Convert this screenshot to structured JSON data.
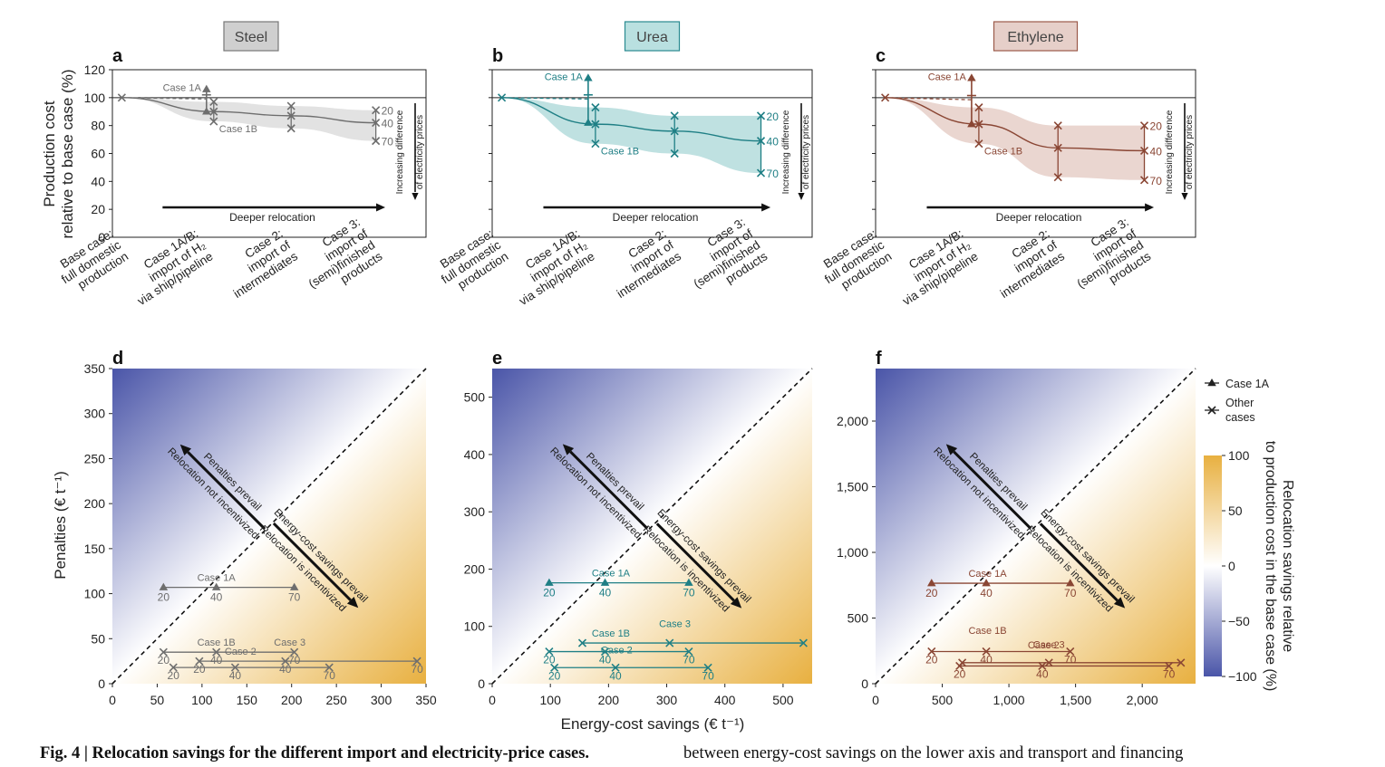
{
  "figure_label": "Fig. 4 | Relocation savings for the different import and electricity-price cases.",
  "caption_continuation": "between energy-cost savings on the lower axis and transport and financing",
  "top_ylabel": [
    "Production cost",
    "relative to base case (%)"
  ],
  "top_xcats": [
    [
      "Base case:",
      "full domestic",
      "production"
    ],
    [
      "Case 1A/B:",
      "import of H₂",
      "via ship/pipeline"
    ],
    [
      "Case 2:",
      "import of",
      "intermediates"
    ],
    [
      "Case 3:",
      "import of",
      "(semi)finished",
      "products"
    ]
  ],
  "deeper_relocation": "Deeper relocation",
  "increasing_diff": [
    "Increasing difference",
    "of electricity prices"
  ],
  "bottom_ylabel": "Penalties (€ t⁻¹)",
  "bottom_xlabel": "Energy-cost savings (€ t⁻¹)",
  "arrow_labels": {
    "penalties_prevail": "Penalties prevail",
    "not_incentivized": "Relocation not incentivized",
    "savings_prevail": "Energy-cost savings prevail",
    "incentivized": "Relocation is incentivized"
  },
  "legend": {
    "case1a": "Case 1A",
    "other": [
      "Other",
      "cases"
    ]
  },
  "colorbar": {
    "ticks": [
      "100",
      "50",
      "0",
      "−50",
      "−100"
    ],
    "label": [
      "Relocation savings relative",
      "to production cost in the base case (%)"
    ],
    "low_color": "#4a55a8",
    "mid_color": "#ffffff",
    "high_color": "#e8b040"
  },
  "chart_data": [
    {
      "panel": "a",
      "product": "Steel",
      "type": "line",
      "color": "#6e6e6e",
      "band": "#e2e2e2",
      "box_fill": "#cfcfcf",
      "box_edge": "#777777",
      "ylim": [
        0,
        120
      ],
      "yticks": [
        0,
        20,
        40,
        60,
        80,
        100,
        120
      ],
      "base": 100,
      "case1a": {
        "top": 106,
        "bottom": 90,
        "label": "Case 1A"
      },
      "case1b": {
        "mid": 90,
        "upper": 97,
        "lower": 83,
        "label": "Case 1B"
      },
      "case2": {
        "mid": 87,
        "upper": 94,
        "lower": 78
      },
      "case3": {
        "mid": 82,
        "upper": 91,
        "lower": 69,
        "labels": [
          "20",
          "40",
          "70"
        ]
      },
      "scatter_ylim": [
        0,
        350
      ],
      "scatter_xlim": [
        0,
        350
      ],
      "scatter_yticks": [
        0,
        50,
        100,
        150,
        200,
        250,
        300,
        350
      ],
      "scatter_xticks": [
        0,
        50,
        100,
        150,
        200,
        250,
        300,
        350
      ],
      "scatter_tick_labels_x": [
        "0",
        "50",
        "100",
        "150",
        "200",
        "250",
        "300",
        "350"
      ],
      "scatter_tick_labels_y": [
        "0",
        "50",
        "100",
        "150",
        "200",
        "250",
        "300",
        "350"
      ],
      "scatter_series": [
        {
          "name": "Case 1A",
          "marker": "tri",
          "y": 107,
          "points": [
            57,
            116,
            203
          ],
          "labels": [
            "20",
            "40",
            "70"
          ],
          "label_offset": 9
        },
        {
          "name": "Case 1B",
          "marker": "x",
          "y": 35,
          "points": [
            57,
            116,
            203
          ],
          "labels": [
            "20",
            "40",
            "70"
          ],
          "label_offset": 0
        },
        {
          "name": "Case 2",
          "marker": "x",
          "y": 25,
          "points": [
            97,
            193,
            340
          ],
          "labels": [
            "20",
            "40",
            "70"
          ],
          "label_offset": 0
        },
        {
          "name": "Case 3",
          "marker": "x",
          "y": 18,
          "points": [
            68,
            137,
            242
          ],
          "labels": [
            "20",
            "40",
            "70"
          ],
          "label_offset": 0
        }
      ],
      "scatter_names": [
        {
          "text": "Case 1A",
          "x": 116,
          "y": 107
        },
        {
          "text": "Case 1B",
          "x": 116,
          "y": 35
        },
        {
          "text": "Case 2",
          "x": 143,
          "y": 25
        },
        {
          "text": "Case 3",
          "x": 198,
          "y": 35
        }
      ]
    },
    {
      "panel": "b",
      "product": "Urea",
      "type": "line",
      "color": "#1f7f85",
      "band": "#bfe1e1",
      "box_fill": "#b9e0e0",
      "box_edge": "#2a8a90",
      "ylim": [
        0,
        120
      ],
      "yticks": [
        0,
        20,
        40,
        60,
        80,
        100,
        120
      ],
      "base": 100,
      "case1a": {
        "top": 114,
        "bottom": 82,
        "label": "Case 1A"
      },
      "case1b": {
        "mid": 81,
        "upper": 93,
        "lower": 67,
        "label": "Case 1B"
      },
      "case2": {
        "mid": 76,
        "upper": 87,
        "lower": 60
      },
      "case3": {
        "mid": 69,
        "upper": 87,
        "lower": 46,
        "labels": [
          "20",
          "40",
          "70"
        ]
      },
      "scatter_ylim": [
        0,
        550
      ],
      "scatter_xlim": [
        0,
        550
      ],
      "scatter_yticks": [
        0,
        100,
        200,
        300,
        400,
        500
      ],
      "scatter_xticks": [
        0,
        100,
        200,
        300,
        400,
        500
      ],
      "scatter_tick_labels_x": [
        "0",
        "100",
        "200",
        "300",
        "400",
        "500"
      ],
      "scatter_tick_labels_y": [
        "0",
        "100",
        "200",
        "300",
        "400",
        "500"
      ],
      "scatter_series": [
        {
          "name": "Case 1A",
          "marker": "tri",
          "y": 176,
          "points": [
            98,
            194,
            338
          ],
          "labels": [
            "20",
            "40",
            "70"
          ],
          "label_offset": 9
        },
        {
          "name": "Case 1B",
          "marker": "x",
          "y": 56,
          "points": [
            98,
            194,
            338
          ],
          "labels": [
            "20",
            "40",
            "70"
          ],
          "label_offset": 0
        },
        {
          "name": "Case 3",
          "marker": "x",
          "y": 71,
          "points": [
            155,
            305,
            535
          ],
          "labels": [],
          "label_offset": 0
        },
        {
          "name": "Case 2",
          "marker": "x",
          "y": 28,
          "points": [
            107,
            212,
            371
          ],
          "labels": [
            "20",
            "40",
            "70"
          ],
          "label_offset": 0
        }
      ],
      "scatter_names": [
        {
          "text": "Case 1A",
          "x": 204,
          "y": 176
        },
        {
          "text": "Case 1B",
          "x": 204,
          "y": 71
        },
        {
          "text": "Case 2",
          "x": 214,
          "y": 42
        },
        {
          "text": "Case 3",
          "x": 314,
          "y": 88
        }
      ]
    },
    {
      "panel": "c",
      "product": "Ethylene",
      "type": "line",
      "color": "#8a4634",
      "band": "#ead6d0",
      "box_fill": "#e6cfc9",
      "box_edge": "#9b5a4a",
      "ylim": [
        0,
        120
      ],
      "yticks": [
        0,
        20,
        40,
        60,
        80,
        100,
        120
      ],
      "base": 100,
      "case1a": {
        "top": 114,
        "bottom": 81,
        "label": "Case 1A"
      },
      "case1b": {
        "mid": 81,
        "upper": 93,
        "lower": 67,
        "label": "Case 1B"
      },
      "case2": {
        "mid": 64,
        "upper": 80,
        "lower": 43
      },
      "case3": {
        "mid": 62,
        "upper": 80,
        "lower": 41,
        "labels": [
          "20",
          "40",
          "70"
        ]
      },
      "scatter_ylim": [
        0,
        2400
      ],
      "scatter_xlim": [
        0,
        2400
      ],
      "scatter_yticks": [
        0,
        500,
        1000,
        1500,
        2000
      ],
      "scatter_xticks": [
        0,
        500,
        1000,
        1500,
        2000
      ],
      "scatter_tick_labels_x": [
        "0",
        "500",
        "1,000",
        "1,500",
        "2,000"
      ],
      "scatter_tick_labels_y": [
        "0",
        "500",
        "1,000",
        "1,500",
        "2,000"
      ],
      "scatter_series": [
        {
          "name": "Case 1A",
          "marker": "tri",
          "y": 765,
          "points": [
            420,
            830,
            1460
          ],
          "labels": [
            "20",
            "40",
            "70"
          ],
          "label_offset": 9
        },
        {
          "name": "Case 1B",
          "marker": "x",
          "y": 245,
          "points": [
            420,
            830,
            1460
          ],
          "labels": [
            "20",
            "40",
            "70"
          ],
          "label_offset": 0
        },
        {
          "name": "Case 2",
          "marker": "x",
          "y": 160,
          "points": [
            650,
            1300,
            2290
          ],
          "labels": [],
          "label_offset": 0
        },
        {
          "name": "Case 3",
          "marker": "x",
          "y": 135,
          "points": [
            630,
            1250,
            2200
          ],
          "labels": [
            "20",
            "40",
            "70"
          ],
          "label_offset": 0
        }
      ],
      "scatter_names": [
        {
          "text": "Case 1A",
          "x": 840,
          "y": 765
        },
        {
          "text": "Case 1B",
          "x": 840,
          "y": 330
        },
        {
          "text": "Case 2",
          "x": 1260,
          "y": 220
        },
        {
          "text": "Case 3",
          "x": 1300,
          "y": 225
        }
      ]
    }
  ]
}
